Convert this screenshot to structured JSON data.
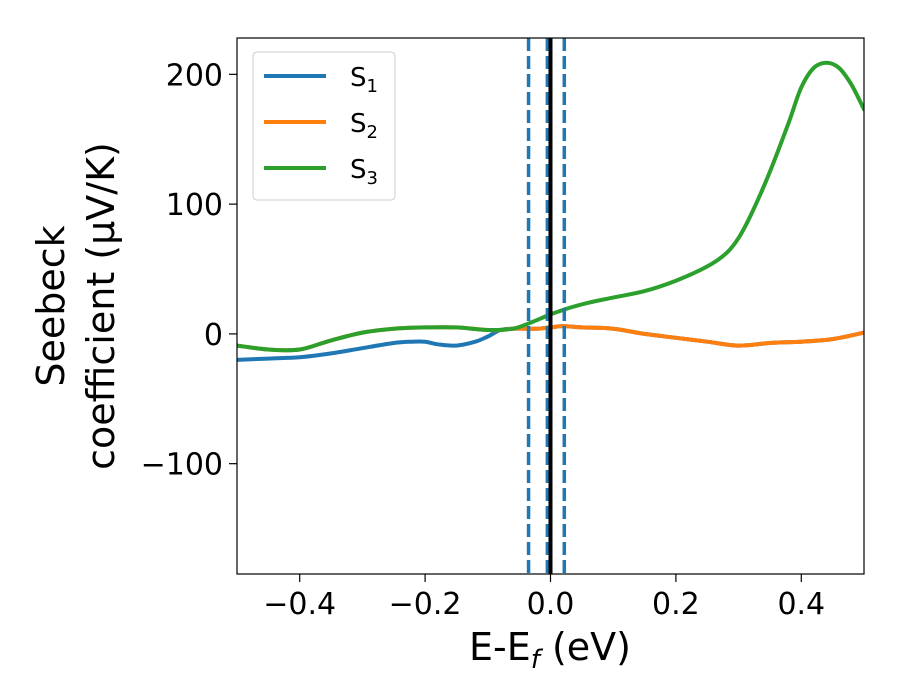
{
  "chart_data": {
    "type": "line",
    "xlabel": "E-E",
    "xlabel_sub": "f",
    "xlabel_unit": " (eV)",
    "ylabel_line1": "Seebeck",
    "ylabel_line2": "coefficient  (μV/K)",
    "xlim": [
      -0.5,
      0.5
    ],
    "ylim": [
      -185,
      228
    ],
    "x_ticks": [
      -0.4,
      -0.2,
      0.0,
      0.2,
      0.4
    ],
    "x_tick_labels": [
      "−0.4",
      "−0.2",
      "0.0",
      "0.2",
      "0.4"
    ],
    "y_ticks": [
      -100,
      0,
      100,
      200
    ],
    "y_tick_labels": [
      "−100",
      "0",
      "100",
      "200"
    ],
    "grid": false,
    "legend_position": "top-left",
    "series": [
      {
        "name": "S",
        "name_sub": "1",
        "color": "#1f77b4",
        "x": [
          -0.5,
          -0.45,
          -0.4,
          -0.35,
          -0.3,
          -0.25,
          -0.22,
          -0.2,
          -0.18,
          -0.15,
          -0.12,
          -0.1,
          -0.08,
          -0.06,
          -0.04,
          -0.03,
          -0.02,
          0.0,
          0.02,
          0.05,
          0.1,
          0.15,
          0.2,
          0.25,
          0.3,
          0.35,
          0.4,
          0.45,
          0.5
        ],
        "y": [
          -20,
          -19,
          -18,
          -15,
          -11,
          -7,
          -6,
          -6,
          -8,
          -9,
          -6,
          -2,
          3,
          4,
          4,
          4,
          4,
          5,
          6,
          5,
          4,
          0,
          -3,
          -6,
          -9,
          -7,
          -6,
          -4,
          1
        ]
      },
      {
        "name": "S",
        "name_sub": "2",
        "color": "#ff7f0e",
        "x": [
          -0.5,
          -0.45,
          -0.4,
          -0.35,
          -0.3,
          -0.25,
          -0.2,
          -0.15,
          -0.1,
          -0.08,
          -0.06,
          -0.04,
          -0.03,
          -0.02,
          0.0,
          0.02,
          0.05,
          0.1,
          0.15,
          0.2,
          0.25,
          0.3,
          0.35,
          0.4,
          0.45,
          0.5
        ],
        "y": [
          -9,
          -12,
          -12,
          -5,
          1,
          4,
          5,
          5,
          3,
          3,
          4,
          4,
          4,
          4,
          5,
          6,
          5,
          4,
          0,
          -3,
          -6,
          -9,
          -7,
          -6,
          -4,
          1
        ]
      },
      {
        "name": "S",
        "name_sub": "3",
        "color": "#2ca02c",
        "x": [
          -0.5,
          -0.45,
          -0.4,
          -0.35,
          -0.3,
          -0.25,
          -0.2,
          -0.15,
          -0.1,
          -0.06,
          -0.03,
          0.0,
          0.03,
          0.06,
          0.1,
          0.15,
          0.2,
          0.25,
          0.28,
          0.3,
          0.32,
          0.35,
          0.38,
          0.4,
          0.42,
          0.44,
          0.46,
          0.48,
          0.5
        ],
        "y": [
          -9,
          -12,
          -12,
          -5,
          1,
          4,
          5,
          5,
          3,
          4,
          9,
          15,
          20,
          24,
          28,
          33,
          41,
          52,
          62,
          74,
          92,
          125,
          163,
          190,
          205,
          209,
          205,
          192,
          173
        ]
      }
    ],
    "vertical_lines": [
      {
        "x": -0.035,
        "style": "dashed",
        "color": "#1f77b4"
      },
      {
        "x": -0.005,
        "style": "dashed",
        "color": "#1f77b4"
      },
      {
        "x": 0.022,
        "style": "dashed",
        "color": "#1f77b4"
      },
      {
        "x": 0.0,
        "style": "solid",
        "color": "#000000"
      }
    ]
  }
}
